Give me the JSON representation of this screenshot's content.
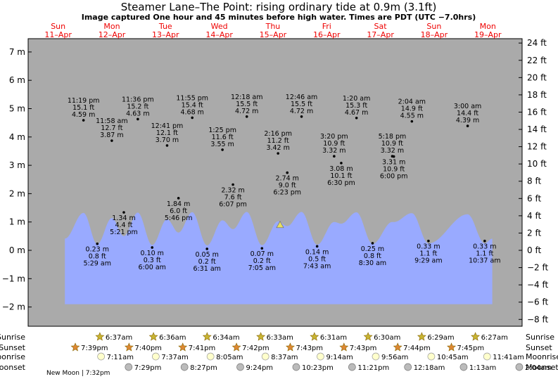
{
  "title": "Steamer Lane–The Point: rising  ordinary tide at 0.9m (3.1ft)",
  "subtitle": "Image captured One hour and 45 minutes before high water. Times are PDT (UTC −7.0hrs)",
  "days": [
    {
      "name": "Sun",
      "date": "11–Apr"
    },
    {
      "name": "Mon",
      "date": "12–Apr"
    },
    {
      "name": "Tue",
      "date": "13–Apr"
    },
    {
      "name": "Wed",
      "date": "14–Apr"
    },
    {
      "name": "Thu",
      "date": "15–Apr"
    },
    {
      "name": "Fri",
      "date": "16–Apr"
    },
    {
      "name": "Sat",
      "date": "17–Apr"
    },
    {
      "name": "Sun",
      "date": "18–Apr"
    },
    {
      "name": "Mon",
      "date": "19–Apr"
    }
  ],
  "chart_data": {
    "type": "area",
    "x_unit": "hours from 00:00 Sun 11-Apr (PDT)",
    "y_left": {
      "unit": "m",
      "range": [
        -2.8,
        7.5
      ],
      "ticks": [
        "−2 m",
        "−1 m",
        "0 m",
        "1 m",
        "2 m",
        "3 m",
        "4 m",
        "5 m",
        "6 m",
        "7 m"
      ],
      "tick_values": [
        -2,
        -1,
        0,
        1,
        2,
        3,
        4,
        5,
        6,
        7
      ]
    },
    "y_right": {
      "unit": "ft",
      "ticks": [
        "−8 ft",
        "−6 ft",
        "−4 ft",
        "−2 ft",
        "0 ft",
        "2 ft",
        "4 ft",
        "6 ft",
        "8 ft",
        "10 ft",
        "12 ft",
        "14 ft",
        "16 ft",
        "18 ft",
        "20 ft",
        "22 ft",
        "24 ft"
      ],
      "tick_values": [
        -8,
        -6,
        -4,
        -2,
        0,
        2,
        4,
        6,
        8,
        10,
        12,
        14,
        16,
        18,
        20,
        22,
        24
      ]
    },
    "current_marker": {
      "height_m": 0.9
    },
    "tides": [
      {
        "time": "11:19 pm",
        "ft": "15.1 ft",
        "m": "4.59 m",
        "val": 4.59,
        "hour": 23.32,
        "kind": "high"
      },
      {
        "time": "5:29 am",
        "ft": "0.8 ft",
        "m": "0.23 m",
        "val": 0.23,
        "hour": 29.48,
        "kind": "low"
      },
      {
        "time": "11:58 am",
        "ft": "12.7 ft",
        "m": "3.87 m",
        "val": 3.87,
        "hour": 35.97,
        "kind": "high"
      },
      {
        "time": "5:21 pm",
        "ft": "4.4 ft",
        "m": "1.34 m",
        "val": 1.34,
        "hour": 41.35,
        "kind": "low"
      },
      {
        "time": "11:36 pm",
        "ft": "15.2 ft",
        "m": "4.63 m",
        "val": 4.63,
        "hour": 47.6,
        "kind": "high"
      },
      {
        "time": "6:00 am",
        "ft": "0.3 ft",
        "m": "0.10 m",
        "val": 0.1,
        "hour": 54.0,
        "kind": "low"
      },
      {
        "time": "12:41 pm",
        "ft": "12.1 ft",
        "m": "3.70 m",
        "val": 3.7,
        "hour": 60.68,
        "kind": "high"
      },
      {
        "time": "5:46 pm",
        "ft": "6.0 ft",
        "m": "1.84 m",
        "val": 1.84,
        "hour": 65.77,
        "kind": "low"
      },
      {
        "time": "11:55 pm",
        "ft": "15.4 ft",
        "m": "4.68 m",
        "val": 4.68,
        "hour": 71.92,
        "kind": "high"
      },
      {
        "time": "6:31 am",
        "ft": "0.2 ft",
        "m": "0.05 m",
        "val": 0.05,
        "hour": 78.52,
        "kind": "low"
      },
      {
        "time": "1:25 pm",
        "ft": "11.6 ft",
        "m": "3.55 m",
        "val": 3.55,
        "hour": 85.42,
        "kind": "high"
      },
      {
        "time": "6:07 pm",
        "ft": "7.6 ft",
        "m": "2.32 m",
        "val": 2.32,
        "hour": 90.12,
        "kind": "low"
      },
      {
        "time": "12:18 am",
        "ft": "15.5 ft",
        "m": "4.72 m",
        "val": 4.72,
        "hour": 96.3,
        "kind": "high"
      },
      {
        "time": "7:05 am",
        "ft": "0.2 ft",
        "m": "0.07 m",
        "val": 0.07,
        "hour": 103.08,
        "kind": "low"
      },
      {
        "time": "2:16 pm",
        "ft": "11.2 ft",
        "m": "3.42 m",
        "val": 3.42,
        "hour": 110.27,
        "kind": "high"
      },
      {
        "time": "6:23 pm",
        "ft": "9.0 ft",
        "m": "2.74 m",
        "val": 2.74,
        "hour": 114.38,
        "kind": "low"
      },
      {
        "time": "12:46 am",
        "ft": "15.5 ft",
        "m": "4.72 m",
        "val": 4.72,
        "hour": 120.77,
        "kind": "high"
      },
      {
        "time": "7:43 am",
        "ft": "0.5 ft",
        "m": "0.14 m",
        "val": 0.14,
        "hour": 127.72,
        "kind": "low"
      },
      {
        "time": "3:20 pm",
        "ft": "10.9 ft",
        "m": "3.32 m",
        "val": 3.32,
        "hour": 135.33,
        "kind": "high"
      },
      {
        "time": "6:30 pm",
        "ft": "10.1 ft",
        "m": "3.08 m",
        "val": 3.08,
        "hour": 138.5,
        "kind": "low"
      },
      {
        "time": "1:20 am",
        "ft": "15.3 ft",
        "m": "4.67 m",
        "val": 4.67,
        "hour": 145.33,
        "kind": "high"
      },
      {
        "time": "8:30 am",
        "ft": "0.8 ft",
        "m": "0.25 m",
        "val": 0.25,
        "hour": 152.5,
        "kind": "low"
      },
      {
        "time": "5:18 pm",
        "ft": "10.9 ft",
        "m": "3.32 m",
        "val": 3.32,
        "hour": 161.3,
        "kind": "high"
      },
      {
        "time": "6:00 pm",
        "ft": "10.9 ft",
        "m": "3.31 m",
        "val": 3.31,
        "hour": 162.0,
        "kind": "low"
      },
      {
        "time": "2:04 am",
        "ft": "14.9 ft",
        "m": "4.55 m",
        "val": 4.55,
        "hour": 170.07,
        "kind": "high"
      },
      {
        "time": "9:29 am",
        "ft": "1.1 ft",
        "m": "0.33 m",
        "val": 0.33,
        "hour": 177.48,
        "kind": "low"
      },
      {
        "time": "3:00 am",
        "ft": "14.4 ft",
        "m": "4.39 m",
        "val": 4.39,
        "hour": 195.0,
        "kind": "high"
      },
      {
        "time": "10:37 am",
        "ft": "1.1 ft",
        "m": "0.33 m",
        "val": 0.33,
        "hour": 202.62,
        "kind": "low"
      }
    ],
    "daylight": [
      {
        "sunrise": "6:37am",
        "sunset": "7:39pm"
      },
      {
        "sunrise": "6:36am",
        "sunset": "7:40pm"
      },
      {
        "sunrise": "6:34am",
        "sunset": "7:41pm"
      },
      {
        "sunrise": "6:33am",
        "sunset": "7:42pm"
      },
      {
        "sunrise": "6:31am",
        "sunset": "7:43pm"
      },
      {
        "sunrise": "6:30am",
        "sunset": "7:43pm"
      },
      {
        "sunrise": "6:29am",
        "sunset": "7:44pm"
      },
      {
        "sunrise": "6:27am",
        "sunset": "7:45pm"
      }
    ]
  },
  "rows": {
    "labels": {
      "sunrise": "Sunrise",
      "sunset": "Sunset",
      "moonrise": "Moonrise",
      "moonset": "Moonset"
    },
    "sunrise": [
      "6:37am",
      "6:36am",
      "6:34am",
      "6:33am",
      "6:31am",
      "6:30am",
      "6:29am",
      "6:27am"
    ],
    "sunset": [
      "7:39pm",
      "7:40pm",
      "7:41pm",
      "7:42pm",
      "7:43pm",
      "7:43pm",
      "7:44pm",
      "7:45pm"
    ],
    "moonrise": [
      "7:11am",
      "7:37am",
      "8:05am",
      "8:37am",
      "9:14am",
      "9:56am",
      "10:45am",
      "11:41am"
    ],
    "moonset": [
      "7:29pm",
      "8:27pm",
      "9:24pm",
      "10:23pm",
      "11:21pm",
      "12:18am",
      "1:13am",
      "2:04am"
    ]
  },
  "new_moon": "New Moon | 7:32pm",
  "colors": {
    "day": "#ffffc0",
    "night": "#aaaaaa",
    "water": "#99aaff",
    "day_label": "#ee0000",
    "sun": "#c8b432",
    "sunset": "#dd8833",
    "moon": "#ffffcc",
    "moonset": "#bbbbbb"
  }
}
